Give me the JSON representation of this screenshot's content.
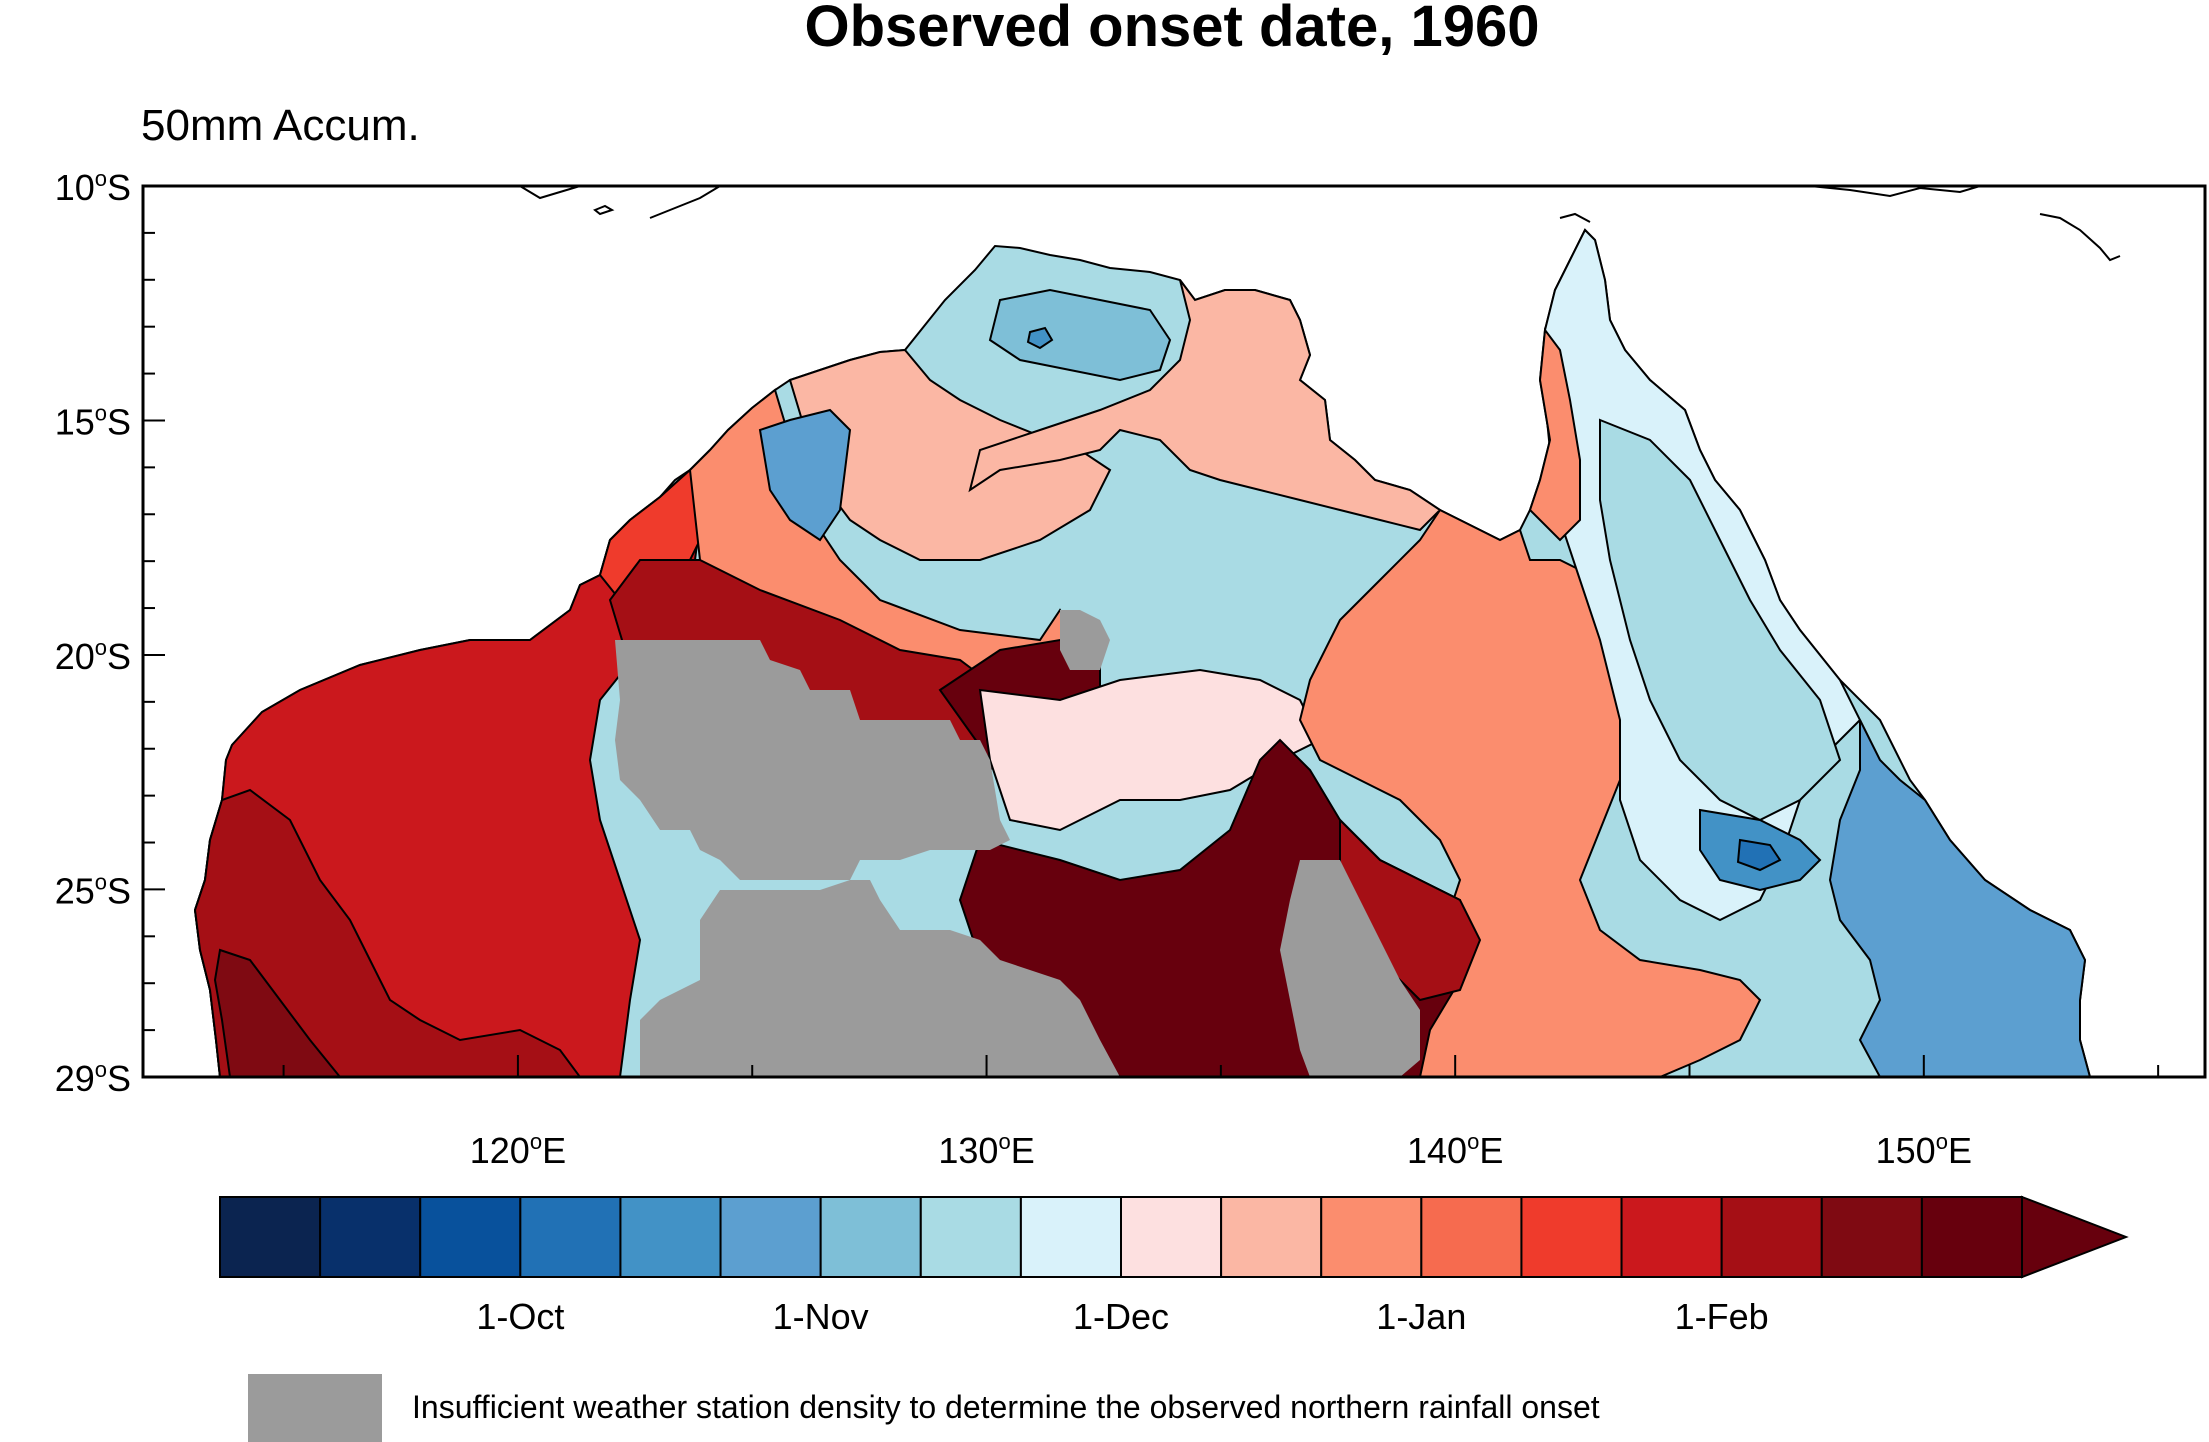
{
  "title": "Observed onset date, 1960",
  "subtitle": "50mm Accum.",
  "lat_axis": {
    "ticks": [
      {
        "value": -10,
        "num": "10",
        "hemi": "S"
      },
      {
        "value": -15,
        "num": "15",
        "hemi": "S"
      },
      {
        "value": -20,
        "num": "20",
        "hemi": "S"
      },
      {
        "value": -25,
        "num": "25",
        "hemi": "S"
      },
      {
        "value": -29,
        "num": "29",
        "hemi": "S"
      }
    ],
    "range": [
      -29,
      -10
    ]
  },
  "lon_axis": {
    "ticks": [
      {
        "value": 120,
        "num": "120",
        "hemi": "E"
      },
      {
        "value": 130,
        "num": "130",
        "hemi": "E"
      },
      {
        "value": 140,
        "num": "140",
        "hemi": "E"
      },
      {
        "value": 150,
        "num": "150",
        "hemi": "E"
      }
    ],
    "range": [
      112,
      156
    ]
  },
  "colorbar": {
    "colors": [
      "#0b2450",
      "#08306b",
      "#08519c",
      "#2171b5",
      "#4292c6",
      "#5c9fd0",
      "#7ebfd7",
      "#a9dbe4",
      "#d9f2fa",
      "#fde0e0",
      "#fbb7a4",
      "#fb8d6e",
      "#f66b4f",
      "#ef3b2c",
      "#cb181d",
      "#a50f15",
      "#7f0a12",
      "#67000d"
    ],
    "labels": [
      "1-Oct",
      "1-Nov",
      "1-Dec",
      "1-Jan",
      "1-Feb"
    ],
    "label_boundaries": [
      3,
      6,
      9,
      12,
      15
    ],
    "extend": "max"
  },
  "legend": {
    "swatch_color": "#9b9b9b",
    "label": "Insufficient weather station density to determine the observed northern rainfall onset"
  },
  "map_colors": {
    "insufficient": "#9b9b9b",
    "coast": "#000000"
  }
}
